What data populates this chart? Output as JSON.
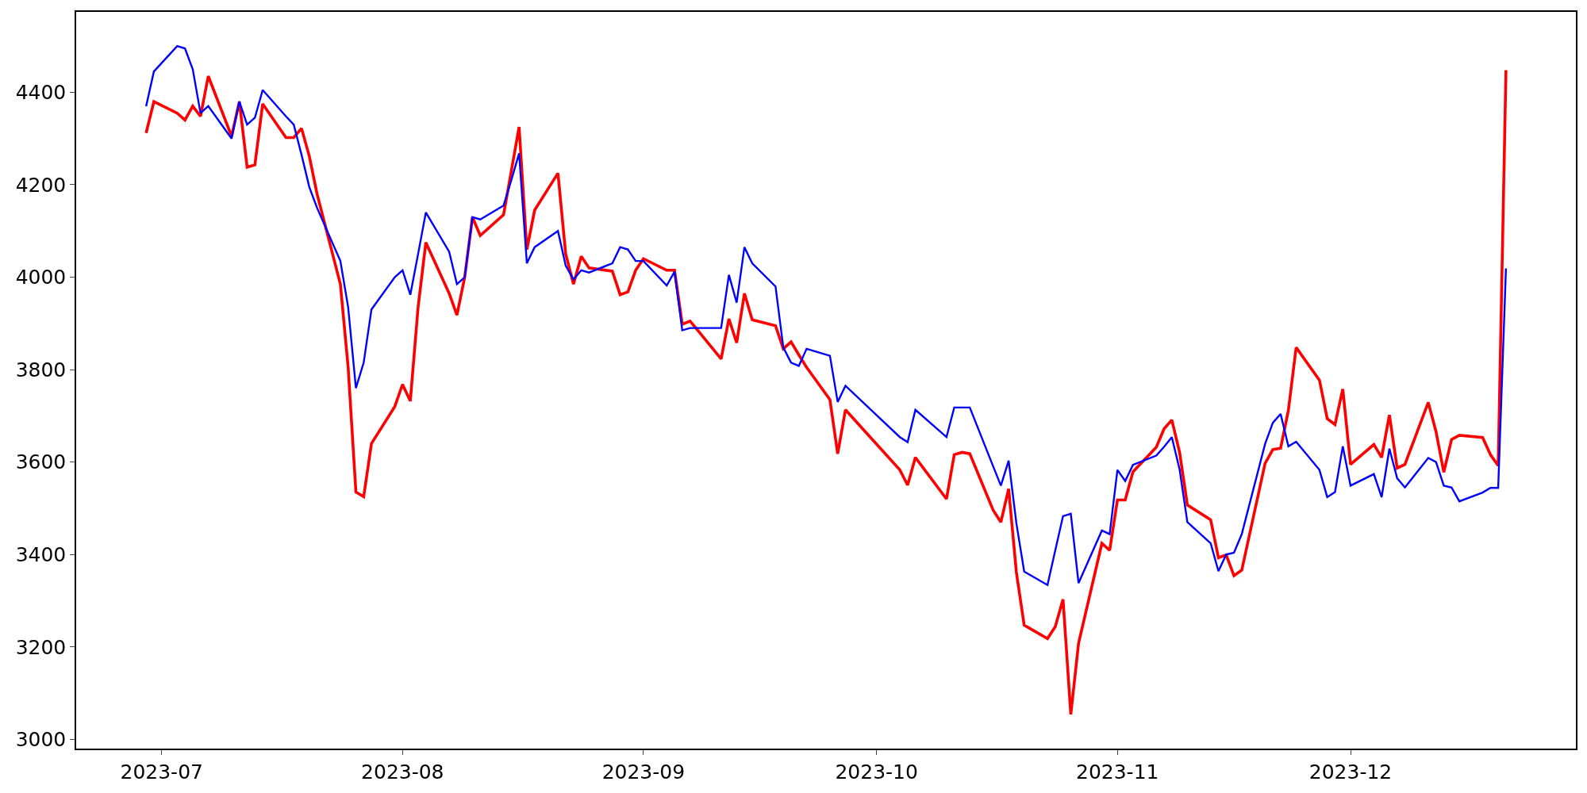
{
  "chart_data": {
    "type": "line",
    "x": [
      "2023-06-29",
      "2023-06-30",
      "2023-07-03",
      "2023-07-04",
      "2023-07-05",
      "2023-07-06",
      "2023-07-07",
      "2023-07-10",
      "2023-07-11",
      "2023-07-12",
      "2023-07-13",
      "2023-07-14",
      "2023-07-17",
      "2023-07-18",
      "2023-07-19",
      "2023-07-20",
      "2023-07-21",
      "2023-07-24",
      "2023-07-25",
      "2023-07-26",
      "2023-07-27",
      "2023-07-28",
      "2023-07-31",
      "2023-08-01",
      "2023-08-02",
      "2023-08-03",
      "2023-08-04",
      "2023-08-07",
      "2023-08-08",
      "2023-08-09",
      "2023-08-10",
      "2023-08-11",
      "2023-08-14",
      "2023-08-15",
      "2023-08-16",
      "2023-08-17",
      "2023-08-18",
      "2023-08-21",
      "2023-08-22",
      "2023-08-23",
      "2023-08-24",
      "2023-08-25",
      "2023-08-28",
      "2023-08-29",
      "2023-08-30",
      "2023-08-31",
      "2023-09-01",
      "2023-09-04",
      "2023-09-05",
      "2023-09-06",
      "2023-09-07",
      "2023-09-08",
      "2023-09-11",
      "2023-09-12",
      "2023-09-13",
      "2023-09-14",
      "2023-09-15",
      "2023-09-18",
      "2023-09-19",
      "2023-09-20",
      "2023-09-21",
      "2023-09-22",
      "2023-09-25",
      "2023-09-26",
      "2023-09-27",
      "2023-10-04",
      "2023-10-05",
      "2023-10-06",
      "2023-10-10",
      "2023-10-11",
      "2023-10-12",
      "2023-10-13",
      "2023-10-16",
      "2023-10-17",
      "2023-10-18",
      "2023-10-19",
      "2023-10-20",
      "2023-10-23",
      "2023-10-24",
      "2023-10-25",
      "2023-10-26",
      "2023-10-27",
      "2023-10-30",
      "2023-10-31",
      "2023-11-01",
      "2023-11-02",
      "2023-11-03",
      "2023-11-06",
      "2023-11-07",
      "2023-11-08",
      "2023-11-09",
      "2023-11-10",
      "2023-11-13",
      "2023-11-14",
      "2023-11-15",
      "2023-11-16",
      "2023-11-17",
      "2023-11-20",
      "2023-11-21",
      "2023-11-22",
      "2023-11-23",
      "2023-11-24",
      "2023-11-27",
      "2023-11-28",
      "2023-11-29",
      "2023-11-30",
      "2023-12-01",
      "2023-12-04",
      "2023-12-05",
      "2023-12-06",
      "2023-12-07",
      "2023-12-08",
      "2023-12-11",
      "2023-12-12",
      "2023-12-13",
      "2023-12-14",
      "2023-12-15",
      "2023-12-18",
      "2023-12-19",
      "2023-12-20",
      "2023-12-21"
    ],
    "series": [
      {
        "color": "#ff0000",
        "values": [
          4312,
          4380,
          4355,
          4340,
          4370,
          4348,
          4435,
          4305,
          4380,
          4238,
          4243,
          4375,
          4302,
          4302,
          4322,
          4262,
          4180,
          3985,
          3805,
          3535,
          3525,
          3640,
          3720,
          3768,
          3732,
          3935,
          4075,
          3965,
          3918,
          4000,
          4130,
          4090,
          4135,
          4230,
          4325,
          4060,
          4145,
          4225,
          4050,
          3985,
          4045,
          4020,
          4013,
          3962,
          3968,
          4015,
          4040,
          4015,
          4015,
          3898,
          3905,
          3885,
          3823,
          3910,
          3858,
          3965,
          3908,
          3895,
          3845,
          3860,
          3832,
          3805,
          3735,
          3618,
          3713,
          3583,
          3550,
          3610,
          3520,
          3616,
          3621,
          3618,
          3496,
          3470,
          3542,
          3361,
          3247,
          3218,
          3244,
          3303,
          3054,
          3208,
          3424,
          3409,
          3518,
          3518,
          3579,
          3632,
          3672,
          3691,
          3621,
          3507,
          3475,
          3393,
          3399,
          3354,
          3366,
          3597,
          3627,
          3630,
          3712,
          3848,
          3777,
          3694,
          3681,
          3758,
          3595,
          3638,
          3610,
          3702,
          3587,
          3595,
          3729,
          3666,
          3578,
          3649,
          3658,
          3653,
          3616,
          3592,
          4448
        ]
      },
      {
        "color": "#0000ff",
        "values": [
          4370,
          4445,
          4500,
          4495,
          4450,
          4355,
          4370,
          4300,
          4380,
          4330,
          4345,
          4405,
          4348,
          4330,
          4265,
          4195,
          4150,
          4035,
          3935,
          3760,
          3815,
          3930,
          4000,
          4015,
          3962,
          4050,
          4140,
          4055,
          3985,
          4000,
          4130,
          4125,
          4155,
          4210,
          4268,
          4030,
          4065,
          4100,
          4025,
          3995,
          4015,
          4010,
          4030,
          4065,
          4060,
          4035,
          4035,
          3982,
          4012,
          3885,
          3890,
          3890,
          3890,
          4005,
          3945,
          4065,
          4030,
          3980,
          3848,
          3815,
          3808,
          3845,
          3830,
          3730,
          3765,
          3654,
          3643,
          3713,
          3654,
          3718,
          3718,
          3718,
          3591,
          3549,
          3603,
          3467,
          3363,
          3334,
          3409,
          3483,
          3488,
          3338,
          3452,
          3444,
          3583,
          3559,
          3594,
          3614,
          3633,
          3654,
          3584,
          3470,
          3424,
          3364,
          3400,
          3404,
          3444,
          3639,
          3685,
          3704,
          3634,
          3644,
          3583,
          3524,
          3535,
          3634,
          3549,
          3574,
          3524,
          3629,
          3565,
          3545,
          3609,
          3600,
          3549,
          3545,
          3515,
          3534,
          3544,
          3544,
          4019
        ]
      }
    ],
    "xlim": [
      "2023-06-20",
      "2023-12-30"
    ],
    "xticks": [
      {
        "value": "2023-07-01",
        "label": "2023-07"
      },
      {
        "value": "2023-08-01",
        "label": "2023-08"
      },
      {
        "value": "2023-09-01",
        "label": "2023-09"
      },
      {
        "value": "2023-10-01",
        "label": "2023-10"
      },
      {
        "value": "2023-11-01",
        "label": "2023-11"
      },
      {
        "value": "2023-12-01",
        "label": "2023-12"
      }
    ],
    "ylim": [
      2980,
      4574
    ],
    "yticks": [
      3000,
      3200,
      3400,
      3600,
      3800,
      4000,
      4200,
      4400
    ],
    "marker": "none",
    "line_style": "solid"
  }
}
